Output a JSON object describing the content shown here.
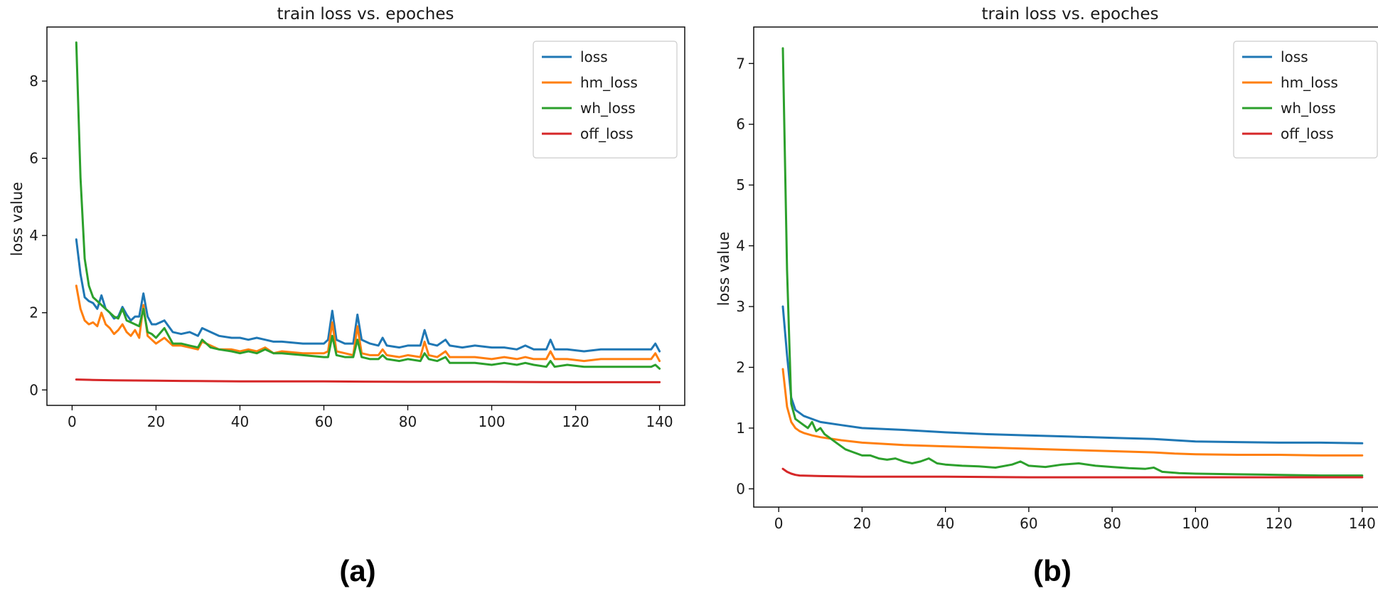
{
  "chart_data": [
    {
      "type": "line",
      "panel_label": "(a)",
      "title": "train loss vs. epoches",
      "xlabel": "",
      "ylabel": "loss value",
      "xlim": [
        -6,
        146
      ],
      "ylim": [
        -0.4,
        9.4
      ],
      "xticks": [
        0,
        20,
        40,
        60,
        80,
        100,
        120,
        140
      ],
      "yticks": [
        0,
        2,
        4,
        6,
        8
      ],
      "legend_position": "top-right",
      "series": [
        {
          "name": "loss",
          "color": "#1f77b4",
          "x": [
            1,
            2,
            3,
            4,
            5,
            6,
            7,
            8,
            9,
            10,
            11,
            12,
            13,
            14,
            15,
            16,
            17,
            18,
            19,
            20,
            22,
            24,
            26,
            28,
            30,
            31,
            33,
            35,
            38,
            40,
            42,
            44,
            46,
            48,
            50,
            55,
            60,
            61,
            62,
            63,
            65,
            67,
            68,
            69,
            71,
            73,
            74,
            75,
            78,
            80,
            83,
            84,
            85,
            87,
            89,
            90,
            93,
            96,
            100,
            103,
            106,
            108,
            110,
            113,
            114,
            115,
            118,
            122,
            126,
            130,
            134,
            138,
            139,
            140
          ],
          "y": [
            3.9,
            3.0,
            2.4,
            2.3,
            2.25,
            2.1,
            2.45,
            2.1,
            2.0,
            1.85,
            1.9,
            2.15,
            1.95,
            1.8,
            1.9,
            1.9,
            2.5,
            1.9,
            1.7,
            1.7,
            1.8,
            1.5,
            1.45,
            1.5,
            1.4,
            1.6,
            1.5,
            1.4,
            1.35,
            1.35,
            1.3,
            1.35,
            1.3,
            1.25,
            1.25,
            1.2,
            1.2,
            1.3,
            2.05,
            1.3,
            1.2,
            1.2,
            1.95,
            1.3,
            1.2,
            1.15,
            1.35,
            1.15,
            1.1,
            1.15,
            1.15,
            1.55,
            1.2,
            1.15,
            1.3,
            1.15,
            1.1,
            1.15,
            1.1,
            1.1,
            1.05,
            1.15,
            1.05,
            1.05,
            1.3,
            1.05,
            1.05,
            1.0,
            1.05,
            1.05,
            1.05,
            1.05,
            1.2,
            1.0
          ]
        },
        {
          "name": "hm_loss",
          "color": "#ff7f0e",
          "x": [
            1,
            2,
            3,
            4,
            5,
            6,
            7,
            8,
            9,
            10,
            11,
            12,
            13,
            14,
            15,
            16,
            17,
            18,
            19,
            20,
            22,
            24,
            26,
            28,
            30,
            31,
            33,
            35,
            38,
            40,
            42,
            44,
            46,
            48,
            50,
            55,
            60,
            61,
            62,
            63,
            65,
            67,
            68,
            69,
            71,
            73,
            74,
            75,
            78,
            80,
            83,
            84,
            85,
            87,
            89,
            90,
            93,
            96,
            100,
            103,
            106,
            108,
            110,
            113,
            114,
            115,
            118,
            122,
            126,
            130,
            134,
            138,
            139,
            140
          ],
          "y": [
            2.7,
            2.1,
            1.8,
            1.7,
            1.75,
            1.65,
            2.0,
            1.7,
            1.6,
            1.45,
            1.55,
            1.7,
            1.5,
            1.4,
            1.55,
            1.35,
            2.2,
            1.4,
            1.3,
            1.2,
            1.35,
            1.15,
            1.15,
            1.1,
            1.05,
            1.25,
            1.15,
            1.05,
            1.05,
            1.0,
            1.05,
            1.0,
            1.1,
            0.95,
            1.0,
            0.95,
            0.95,
            1.0,
            1.75,
            1.0,
            0.95,
            0.9,
            1.65,
            0.95,
            0.9,
            0.9,
            1.05,
            0.9,
            0.85,
            0.9,
            0.85,
            1.25,
            0.9,
            0.85,
            1.0,
            0.85,
            0.85,
            0.85,
            0.8,
            0.85,
            0.8,
            0.85,
            0.8,
            0.8,
            1.0,
            0.8,
            0.8,
            0.75,
            0.8,
            0.8,
            0.8,
            0.8,
            0.95,
            0.75
          ]
        },
        {
          "name": "wh_loss",
          "color": "#2ca02c",
          "x": [
            1,
            2,
            3,
            4,
            5,
            6,
            7,
            8,
            9,
            10,
            11,
            12,
            13,
            14,
            15,
            16,
            17,
            18,
            19,
            20,
            22,
            24,
            26,
            28,
            30,
            31,
            33,
            35,
            38,
            40,
            42,
            44,
            46,
            48,
            50,
            55,
            60,
            61,
            62,
            63,
            65,
            67,
            68,
            69,
            71,
            73,
            74,
            75,
            78,
            80,
            83,
            84,
            85,
            87,
            89,
            90,
            93,
            96,
            100,
            103,
            106,
            108,
            110,
            113,
            114,
            115,
            118,
            122,
            126,
            130,
            134,
            138,
            139,
            140
          ],
          "y": [
            9.0,
            5.5,
            3.4,
            2.7,
            2.4,
            2.3,
            2.2,
            2.1,
            2.0,
            1.9,
            1.85,
            2.1,
            1.8,
            1.75,
            1.7,
            1.65,
            2.1,
            1.5,
            1.45,
            1.35,
            1.6,
            1.2,
            1.2,
            1.15,
            1.1,
            1.3,
            1.1,
            1.05,
            1.0,
            0.95,
            1.0,
            0.95,
            1.05,
            0.95,
            0.95,
            0.9,
            0.85,
            0.85,
            1.4,
            0.9,
            0.85,
            0.85,
            1.3,
            0.85,
            0.8,
            0.8,
            0.9,
            0.8,
            0.75,
            0.8,
            0.75,
            0.95,
            0.8,
            0.75,
            0.85,
            0.7,
            0.7,
            0.7,
            0.65,
            0.7,
            0.65,
            0.7,
            0.65,
            0.6,
            0.75,
            0.6,
            0.65,
            0.6,
            0.6,
            0.6,
            0.6,
            0.6,
            0.65,
            0.55
          ]
        },
        {
          "name": "off_loss",
          "color": "#d62728",
          "x": [
            1,
            5,
            10,
            20,
            30,
            40,
            60,
            80,
            100,
            120,
            140
          ],
          "y": [
            0.27,
            0.26,
            0.25,
            0.24,
            0.23,
            0.22,
            0.22,
            0.21,
            0.21,
            0.2,
            0.2
          ]
        }
      ]
    },
    {
      "type": "line",
      "panel_label": "(b)",
      "title": "train loss vs. epoches",
      "xlabel": "",
      "ylabel": "loss value",
      "xlim": [
        -6,
        146
      ],
      "ylim": [
        -0.3,
        7.6
      ],
      "xticks": [
        0,
        20,
        40,
        60,
        80,
        100,
        120,
        140
      ],
      "yticks": [
        0,
        1,
        2,
        3,
        4,
        5,
        6,
        7
      ],
      "legend_position": "top-right",
      "series": [
        {
          "name": "loss",
          "color": "#1f77b4",
          "x": [
            1,
            2,
            3,
            4,
            5,
            6,
            8,
            10,
            15,
            20,
            30,
            40,
            50,
            60,
            70,
            80,
            90,
            95,
            100,
            110,
            120,
            130,
            140
          ],
          "y": [
            3.0,
            2.2,
            1.5,
            1.3,
            1.25,
            1.2,
            1.15,
            1.1,
            1.05,
            1.0,
            0.97,
            0.93,
            0.9,
            0.88,
            0.86,
            0.84,
            0.82,
            0.8,
            0.78,
            0.77,
            0.76,
            0.76,
            0.75
          ]
        },
        {
          "name": "hm_loss",
          "color": "#ff7f0e",
          "x": [
            1,
            2,
            3,
            4,
            5,
            6,
            8,
            10,
            15,
            20,
            30,
            40,
            50,
            60,
            70,
            80,
            90,
            95,
            100,
            110,
            120,
            130,
            140
          ],
          "y": [
            1.97,
            1.35,
            1.1,
            1.0,
            0.95,
            0.92,
            0.88,
            0.85,
            0.8,
            0.76,
            0.72,
            0.7,
            0.68,
            0.66,
            0.64,
            0.62,
            0.6,
            0.58,
            0.57,
            0.56,
            0.56,
            0.55,
            0.55
          ]
        },
        {
          "name": "wh_loss",
          "color": "#2ca02c",
          "x": [
            1,
            2,
            3,
            4,
            5,
            6,
            7,
            8,
            9,
            10,
            11,
            12,
            14,
            16,
            18,
            20,
            22,
            24,
            26,
            28,
            30,
            32,
            34,
            36,
            38,
            40,
            44,
            48,
            52,
            56,
            58,
            60,
            64,
            68,
            72,
            76,
            80,
            84,
            88,
            90,
            92,
            96,
            100,
            110,
            120,
            130,
            140
          ],
          "y": [
            7.25,
            3.6,
            1.4,
            1.15,
            1.1,
            1.05,
            1.0,
            1.1,
            0.95,
            1.0,
            0.9,
            0.85,
            0.75,
            0.65,
            0.6,
            0.55,
            0.55,
            0.5,
            0.48,
            0.5,
            0.45,
            0.42,
            0.45,
            0.5,
            0.42,
            0.4,
            0.38,
            0.37,
            0.35,
            0.4,
            0.45,
            0.38,
            0.36,
            0.4,
            0.42,
            0.38,
            0.36,
            0.34,
            0.33,
            0.35,
            0.28,
            0.26,
            0.25,
            0.24,
            0.23,
            0.22,
            0.22
          ]
        },
        {
          "name": "off_loss",
          "color": "#d62728",
          "x": [
            1,
            2,
            3,
            4,
            5,
            10,
            20,
            40,
            60,
            80,
            100,
            120,
            140
          ],
          "y": [
            0.33,
            0.28,
            0.25,
            0.23,
            0.22,
            0.21,
            0.2,
            0.2,
            0.19,
            0.19,
            0.19,
            0.19,
            0.19
          ]
        }
      ]
    }
  ]
}
